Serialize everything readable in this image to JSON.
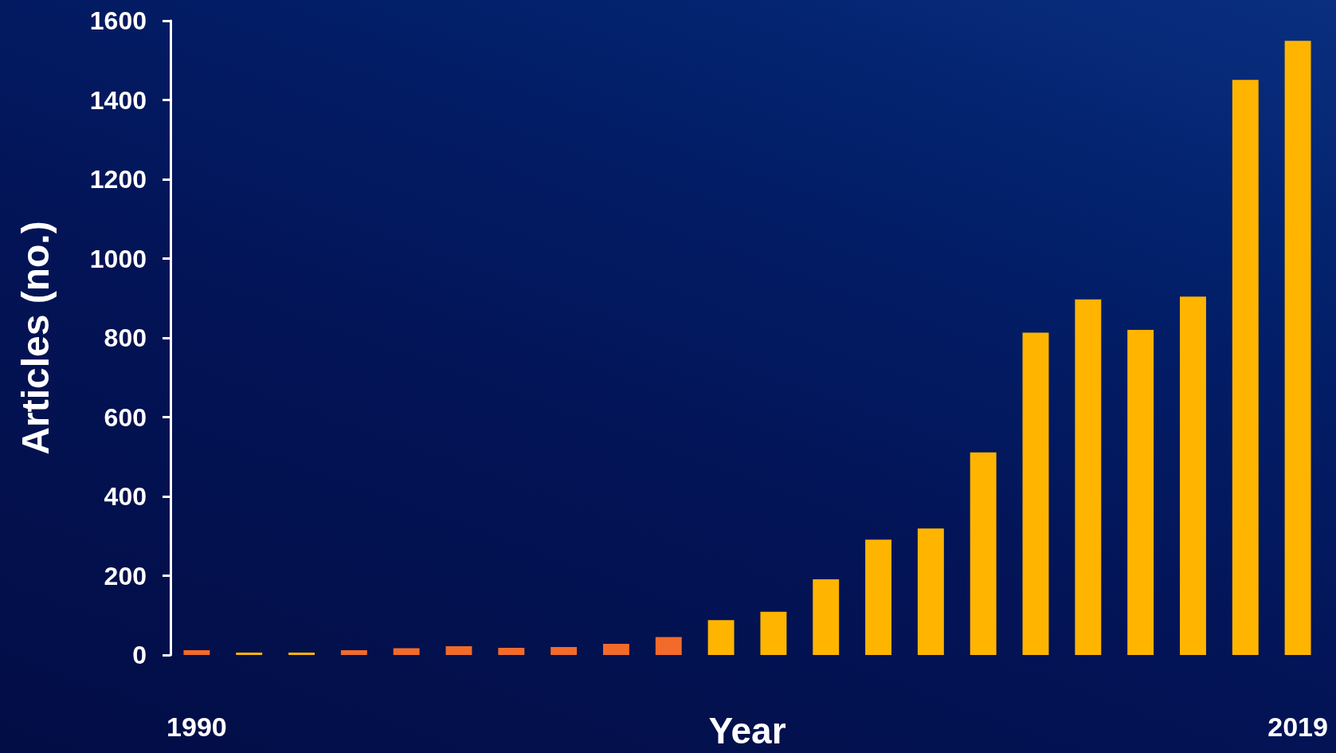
{
  "chart_data": {
    "type": "bar",
    "xlabel": "Year",
    "ylabel": "Articles (no.)",
    "categories": [
      "1990",
      null,
      null,
      null,
      null,
      null,
      null,
      null,
      null,
      null,
      null,
      null,
      null,
      null,
      null,
      null,
      null,
      null,
      null,
      null,
      null,
      "2019"
    ],
    "values": [
      12,
      6,
      6,
      12,
      17,
      22,
      18,
      20,
      28,
      45,
      88,
      109,
      191,
      291,
      319,
      511,
      813,
      897,
      820,
      904,
      1451,
      1549
    ],
    "colors": [
      "#f26b2a",
      "#ffb500",
      "#ffb500",
      "#f26b2a",
      "#f26b2a",
      "#f26b2a",
      "#f26b2a",
      "#f26b2a",
      "#f26b2a",
      "#f26b2a",
      "#ffb500",
      "#ffb500",
      "#ffb500",
      "#ffb500",
      "#ffb500",
      "#ffb500",
      "#ffb500",
      "#ffb500",
      "#ffb500",
      "#ffb500",
      "#ffb500",
      "#ffb500"
    ],
    "ylim": [
      0,
      1600
    ],
    "yticks": [
      0,
      200,
      400,
      600,
      800,
      1000,
      1200,
      1400,
      1600
    ]
  }
}
